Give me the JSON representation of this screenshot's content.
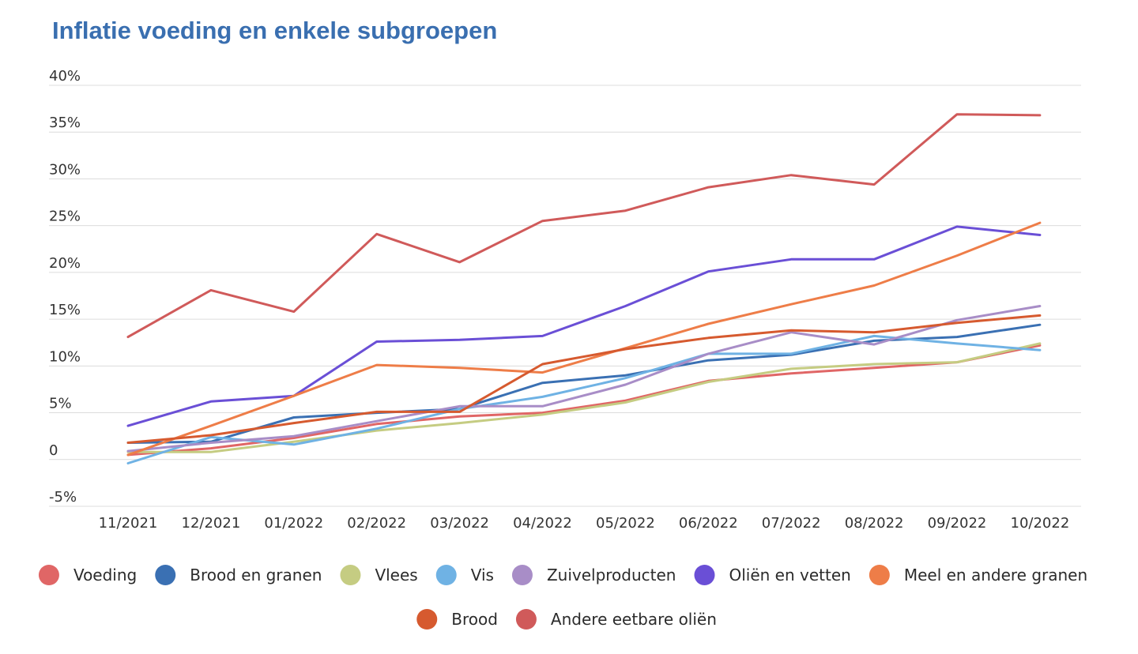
{
  "chart_data": {
    "type": "line",
    "title": "Inflatie voeding en enkele subgroepen",
    "xlabel": "",
    "ylabel": "",
    "ylim": [
      -5,
      40
    ],
    "yticks": [
      {
        "value": 40,
        "label": "40%"
      },
      {
        "value": 35,
        "label": "35%"
      },
      {
        "value": 30,
        "label": "30%"
      },
      {
        "value": 25,
        "label": "25%"
      },
      {
        "value": 20,
        "label": "20%"
      },
      {
        "value": 15,
        "label": "15%"
      },
      {
        "value": 10,
        "label": "10%"
      },
      {
        "value": 5,
        "label": "5%"
      },
      {
        "value": 0,
        "label": "0"
      },
      {
        "value": -5,
        "label": "-5%"
      }
    ],
    "categories": [
      "11/2021",
      "12/2021",
      "01/2022",
      "02/2022",
      "03/2022",
      "04/2022",
      "05/2022",
      "06/2022",
      "07/2022",
      "08/2022",
      "09/2022",
      "10/2022"
    ],
    "legend_position": "bottom",
    "series": [
      {
        "name": "Voeding",
        "color": "#e06666",
        "values": [
          0.5,
          1.2,
          2.3,
          3.8,
          4.6,
          5.0,
          6.3,
          8.4,
          9.2,
          9.8,
          10.4,
          12.2
        ]
      },
      {
        "name": "Brood en granen",
        "color": "#3a70b3",
        "values": [
          1.8,
          1.9,
          4.5,
          5.0,
          5.4,
          8.2,
          9.0,
          10.6,
          11.2,
          12.7,
          13.1,
          14.4
        ]
      },
      {
        "name": "Vlees",
        "color": "#c5cc82",
        "values": [
          0.8,
          0.8,
          1.9,
          3.1,
          3.9,
          4.8,
          6.1,
          8.3,
          9.7,
          10.2,
          10.4,
          12.4
        ]
      },
      {
        "name": "Vis",
        "color": "#6fb2e4",
        "values": [
          -0.4,
          2.4,
          1.6,
          3.3,
          5.4,
          6.7,
          8.7,
          11.3,
          11.3,
          13.2,
          12.4,
          11.7
        ]
      },
      {
        "name": "Zuivelproducten",
        "color": "#a88dc7",
        "values": [
          0.9,
          1.8,
          2.5,
          4.1,
          5.7,
          5.7,
          8.0,
          11.3,
          13.6,
          12.3,
          14.9,
          16.4
        ]
      },
      {
        "name": "Oliën en vetten",
        "color": "#6a4fd6",
        "values": [
          3.6,
          6.2,
          6.8,
          12.6,
          12.8,
          13.2,
          16.4,
          20.1,
          21.4,
          21.4,
          24.9,
          24.0
        ]
      },
      {
        "name": "Meel en andere granen",
        "color": "#ee7d48",
        "values": [
          0.5,
          3.6,
          6.8,
          10.1,
          9.8,
          9.3,
          11.9,
          14.5,
          16.6,
          18.6,
          21.8,
          25.3
        ]
      },
      {
        "name": "Brood",
        "color": "#d65a2f",
        "values": [
          1.8,
          2.6,
          3.9,
          5.1,
          5.1,
          10.2,
          11.8,
          13.0,
          13.8,
          13.6,
          14.6,
          15.4
        ]
      },
      {
        "name": "Andere eetbare oliën",
        "color": "#d05a5a",
        "values": [
          13.1,
          18.1,
          15.8,
          24.1,
          21.1,
          25.5,
          26.6,
          29.1,
          30.4,
          29.4,
          36.9,
          36.8
        ]
      }
    ]
  }
}
